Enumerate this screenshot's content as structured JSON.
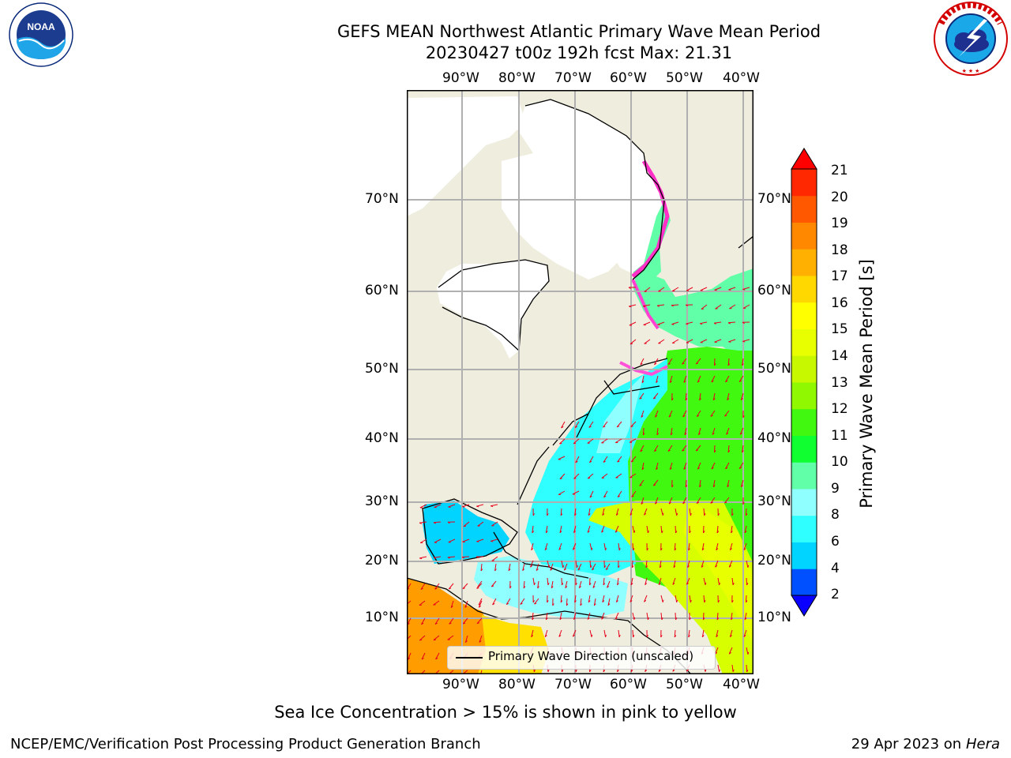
{
  "header": {
    "title_line1": "GEFS MEAN Northwest Atlantic Primary Wave Mean Period",
    "title_line2": "20230427 t00z 192h fcst   Max: 21.31"
  },
  "logos": {
    "left": {
      "name": "noaa-logo",
      "text": "NOAA",
      "ring_text": "NATIONAL OCEANIC AND ATMOSPHERIC ADMINISTRATION · U.S. DEPARTMENT OF COMMERCE"
    },
    "right": {
      "name": "nws-logo",
      "ring_text": "NATIONAL WEATHER SERVICE"
    }
  },
  "map": {
    "lon_labels": [
      "90°W",
      "80°W",
      "70°W",
      "60°W",
      "50°W",
      "40°W"
    ],
    "lat_labels_left": [
      "70°N",
      "60°N",
      "50°N",
      "40°N",
      "30°N",
      "20°N",
      "10°N"
    ],
    "lat_labels_right": [
      "70°N",
      "60°N",
      "50°N",
      "40°N",
      "30°N",
      "20°N",
      "10°N"
    ],
    "legend_label": "Primary Wave Direction (unscaled)",
    "colors": {
      "land": "#efedde",
      "ice_sheet": "#ffffff",
      "grid": "#b0b0b0",
      "arrows": "#e8001a",
      "coast": "#000000"
    }
  },
  "colorbar": {
    "label": "Primary Wave Mean Period [s]",
    "ticks": [
      "2",
      "4",
      "6",
      "8",
      "9",
      "10",
      "11",
      "12",
      "13",
      "14",
      "15",
      "16",
      "17",
      "18",
      "19",
      "20",
      "21"
    ],
    "under_color": "#0a00ff",
    "over_color": "#ff0000",
    "colors": [
      "#0050ff",
      "#00d4ff",
      "#30ffff",
      "#90ffff",
      "#60ffa8",
      "#10ff30",
      "#40f810",
      "#90f800",
      "#c8f800",
      "#e8ff00",
      "#ffff00",
      "#ffd800",
      "#ffb000",
      "#ff8800",
      "#ff5800",
      "#ff2800"
    ]
  },
  "notes": {
    "sea_ice": "Sea Ice Concentration > 15% is shown in pink to yellow"
  },
  "footer": {
    "org": "NCEP/EMC/Verification Post Processing Product Generation Branch",
    "date_prefix": "29 Apr 2023 on ",
    "machine": "Hera"
  }
}
